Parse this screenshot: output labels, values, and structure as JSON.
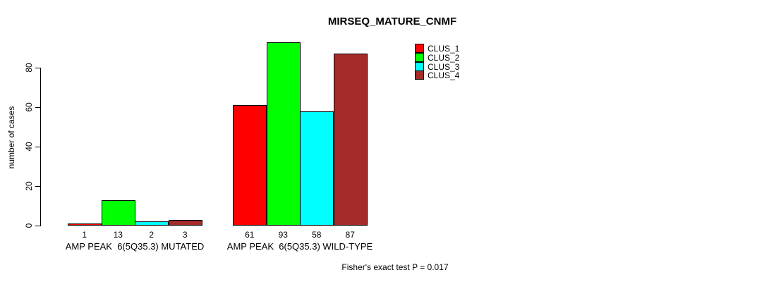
{
  "chart_data": {
    "type": "bar",
    "title": "MIRSEQ_MATURE_CNMF",
    "ylabel": "number of cases",
    "xlabel": "",
    "categories": [
      "AMP PEAK  6(5Q35.3) MUTATED",
      "AMP PEAK  6(5Q35.3) WILD-TYPE"
    ],
    "series": [
      {
        "name": "CLUS_1",
        "color": "#FF0000",
        "values": [
          1,
          61
        ]
      },
      {
        "name": "CLUS_2",
        "color": "#00FF00",
        "values": [
          13,
          93
        ]
      },
      {
        "name": "CLUS_3",
        "color": "#00FFFF",
        "values": [
          2,
          58
        ]
      },
      {
        "name": "CLUS_4",
        "color": "#A52A2A",
        "values": [
          3,
          87
        ]
      }
    ],
    "yticks": [
      0,
      20,
      40,
      60,
      80
    ],
    "ylim": [
      0,
      93
    ],
    "grid": false,
    "legend_position": "top-right",
    "bar_labels_shown": true,
    "footnote": "Fisher's exact test P = 0.017"
  }
}
